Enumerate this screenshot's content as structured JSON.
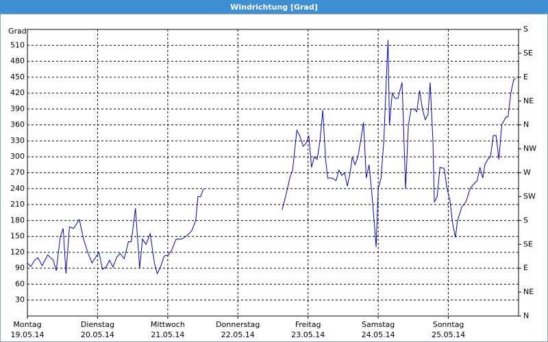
{
  "chart_data": {
    "type": "line",
    "title": "Windrichtung [Grad]",
    "ylabel": "Grad",
    "xlim": [
      0,
      7
    ],
    "ylim": [
      0,
      540
    ],
    "y2lim": [
      0,
      540
    ],
    "grid": true,
    "xticks": [
      {
        "value": 0,
        "label": "Montag"
      },
      {
        "value": 1,
        "label": "Dienstag"
      },
      {
        "value": 2,
        "label": "Mittwoch"
      },
      {
        "value": 3,
        "label": "Donnerstag"
      },
      {
        "value": 4,
        "label": "Freitag"
      },
      {
        "value": 5,
        "label": "Samstag"
      },
      {
        "value": 6,
        "label": "Sonntag"
      }
    ],
    "xtick_dates": [
      "19.05.14",
      "20.05.14",
      "21.05.14",
      "22.05.14",
      "23.05.14",
      "24.05.14",
      "25.05.14"
    ],
    "yticks": [
      30,
      60,
      90,
      120,
      150,
      180,
      210,
      240,
      270,
      300,
      330,
      360,
      390,
      420,
      450,
      480,
      510
    ],
    "y2ticks": [
      {
        "value": 0,
        "label": "N"
      },
      {
        "value": 45,
        "label": "NE"
      },
      {
        "value": 90,
        "label": "E"
      },
      {
        "value": 135,
        "label": "SE"
      },
      {
        "value": 180,
        "label": "S"
      },
      {
        "value": 225,
        "label": "SW"
      },
      {
        "value": 270,
        "label": "W"
      },
      {
        "value": 315,
        "label": "NW"
      },
      {
        "value": 360,
        "label": "N"
      },
      {
        "value": 405,
        "label": "NE"
      },
      {
        "value": 450,
        "label": "E"
      },
      {
        "value": 495,
        "label": "SE"
      },
      {
        "value": 540,
        "label": "S"
      }
    ],
    "series": [
      {
        "name": "Windrichtung",
        "color": "#0000b0",
        "x": [
          0,
          0.05,
          0.1,
          0.15,
          0.21,
          0.29,
          0.37,
          0.41,
          0.47,
          0.51,
          0.55,
          0.6,
          0.66,
          0.74,
          0.8,
          0.86,
          0.92,
          0.97,
          1.02,
          1.07,
          1.12,
          1.17,
          1.22,
          1.27,
          1.32,
          1.38,
          1.44,
          1.48,
          1.54,
          1.6,
          1.64,
          1.69,
          1.75,
          1.81,
          1.85,
          1.89,
          1.95,
          2.01,
          2.06,
          2.12,
          2.2,
          2.26,
          2.34,
          2.4,
          2.43,
          2.47,
          2.51,
          3.0,
          3.63,
          3.68,
          3.74,
          3.78,
          3.84,
          3.88,
          3.93,
          3.97,
          4.01,
          4.05,
          4.09,
          4.13,
          4.17,
          4.21,
          4.25,
          4.28,
          4.34,
          4.4,
          4.44,
          4.48,
          4.52,
          4.56,
          4.6,
          4.63,
          4.67,
          4.71,
          4.75,
          4.79,
          4.83,
          4.87,
          4.91,
          4.95,
          4.97,
          5.0,
          5.04,
          5.08,
          5.12,
          5.14,
          5.16,
          5.2,
          5.24,
          5.28,
          5.34,
          5.39,
          5.43,
          5.47,
          5.51,
          5.55,
          5.59,
          5.63,
          5.67,
          5.71,
          5.74,
          5.78,
          5.8,
          5.84,
          5.88,
          5.94,
          5.98,
          6.02,
          6.06,
          6.1,
          6.13,
          6.19,
          6.25,
          6.31,
          6.37,
          6.41,
          6.45,
          6.49,
          6.52,
          6.56,
          6.6,
          6.64,
          6.68,
          6.72,
          6.76,
          6.82,
          6.85,
          6.89,
          6.93,
          6.96
        ],
        "values": [
          100,
          93,
          105,
          110,
          95,
          115,
          105,
          85,
          150,
          165,
          80,
          168,
          165,
          182,
          145,
          120,
          100,
          110,
          120,
          88,
          92,
          105,
          92,
          110,
          118,
          108,
          140,
          140,
          203,
          90,
          145,
          135,
          155,
          100,
          80,
          90,
          113,
          115,
          125,
          145,
          145,
          150,
          160,
          180,
          225,
          225,
          240,
          null,
          200,
          225,
          260,
          275,
          350,
          340,
          320,
          325,
          340,
          280,
          300,
          295,
          330,
          388,
          295,
          260,
          260,
          255,
          275,
          265,
          270,
          245,
          270,
          300,
          285,
          300,
          330,
          365,
          260,
          285,
          230,
          165,
          130,
          240,
          260,
          330,
          460,
          520,
          360,
          420,
          410,
          410,
          440,
          240,
          360,
          390,
          390,
          385,
          425,
          390,
          370,
          380,
          440,
          330,
          215,
          225,
          280,
          278,
          240,
          220,
          175,
          148,
          180,
          205,
          215,
          240,
          250,
          255,
          280,
          260,
          285,
          295,
          300,
          340,
          340,
          295,
          360,
          375,
          375,
          420,
          445,
          448
        ]
      }
    ]
  }
}
